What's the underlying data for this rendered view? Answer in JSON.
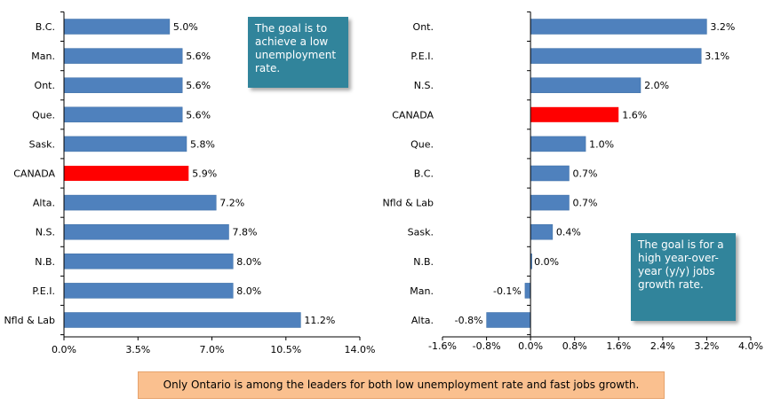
{
  "chart_data": [
    {
      "type": "bar",
      "orientation": "horizontal",
      "title": "",
      "xlabel": "",
      "ylabel": "",
      "categories": [
        "B.C.",
        "Man.",
        "Ont.",
        "Que.",
        "Sask.",
        "CANADA",
        "Alta.",
        "N.S.",
        "N.B.",
        "P.E.I.",
        "Nfld & Lab"
      ],
      "values": [
        5.0,
        5.6,
        5.6,
        5.6,
        5.8,
        5.9,
        7.2,
        7.8,
        8.0,
        8.0,
        11.2
      ],
      "value_labels": [
        "5.0%",
        "5.6%",
        "5.6%",
        "5.6%",
        "5.8%",
        "5.9%",
        "7.2%",
        "7.8%",
        "8.0%",
        "8.0%",
        "11.2%"
      ],
      "highlight_category": "CANADA",
      "xlim": [
        0,
        14.0
      ],
      "xticks": [
        0,
        3.5,
        7.0,
        10.5,
        14.0
      ],
      "xtick_labels": [
        "0.0%",
        "3.5%",
        "7.0%",
        "10.5%",
        "14.0%"
      ],
      "grid": false
    },
    {
      "type": "bar",
      "orientation": "horizontal",
      "title": "",
      "xlabel": "",
      "ylabel": "",
      "categories": [
        "Ont.",
        "P.E.I.",
        "N.S.",
        "CANADA",
        "Que.",
        "B.C.",
        "Nfld & Lab",
        "Sask.",
        "N.B.",
        "Man.",
        "Alta."
      ],
      "values": [
        3.2,
        3.1,
        2.0,
        1.6,
        1.0,
        0.7,
        0.7,
        0.4,
        0.0,
        -0.1,
        -0.8
      ],
      "value_labels": [
        "3.2%",
        "3.1%",
        "2.0%",
        "1.6%",
        "1.0%",
        "0.7%",
        "0.7%",
        "0.4%",
        "0.0%",
        "-0.1%",
        "-0.8%"
      ],
      "highlight_category": "CANADA",
      "xlim": [
        -1.6,
        4.0
      ],
      "xticks": [
        -1.6,
        -0.8,
        0.0,
        0.8,
        1.6,
        2.4,
        3.2,
        4.0
      ],
      "xtick_labels": [
        "-1.6%",
        "-0.8%",
        "0.0%",
        "0.8%",
        "1.6%",
        "2.4%",
        "3.2%",
        "4.0%"
      ],
      "grid": false
    }
  ],
  "notes": {
    "left": "The goal is to achieve a low unemployment rate.",
    "right": "The goal is for a high year-over-year (y/y) jobs growth rate."
  },
  "caption": "Only Ontario is among the leaders for both low unemployment rate and fast jobs growth.",
  "colors": {
    "bar": "#4f81bd",
    "highlight": "#ff0000",
    "note_bg": "#31849b",
    "caption_bg": "#fac08f",
    "axis": "#000000",
    "text": "#000000"
  }
}
